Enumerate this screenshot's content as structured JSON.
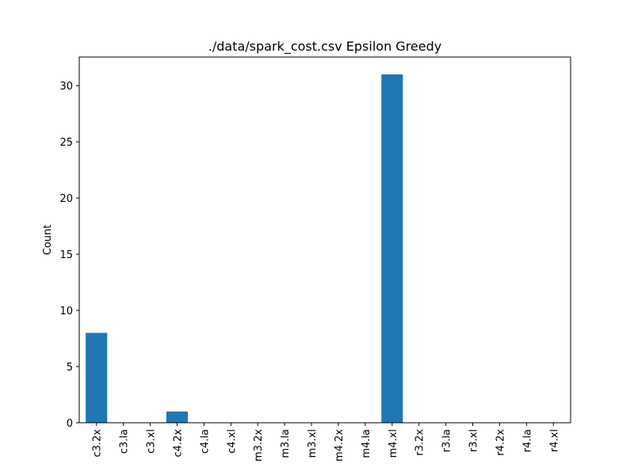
{
  "chart_data": {
    "type": "bar",
    "title": "./data/spark_cost.csv Epsilon Greedy",
    "xlabel": "",
    "ylabel": "Count",
    "categories": [
      "c3.2x",
      "c3.la",
      "c3.xl",
      "c4.2x",
      "c4.la",
      "c4.xl",
      "m3.2x",
      "m3.la",
      "m3.xl",
      "m4.2x",
      "m4.la",
      "m4.xl",
      "r3.2x",
      "r3.la",
      "r3.xl",
      "r4.2x",
      "r4.la",
      "r4.xl"
    ],
    "values": [
      8,
      0,
      0,
      1,
      0,
      0,
      0,
      0,
      0,
      0,
      0,
      31,
      0,
      0,
      0,
      0,
      0,
      0
    ],
    "ylim": [
      0,
      32.55
    ],
    "yticks": [
      0,
      5,
      10,
      15,
      20,
      25,
      30
    ],
    "grid": false,
    "legend": "none",
    "colors": {
      "bar": "#1f77b4",
      "axis": "#000000",
      "text": "#000000",
      "background": "#ffffff"
    }
  }
}
